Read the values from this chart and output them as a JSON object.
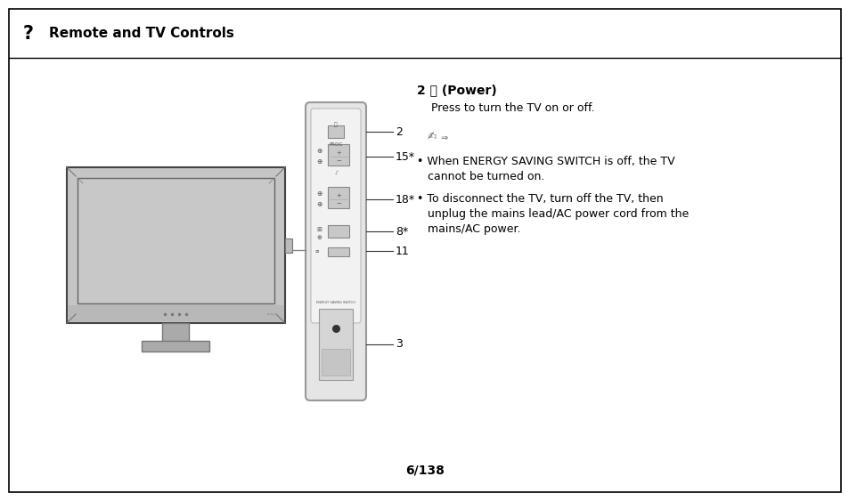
{
  "bg_color": "#ffffff",
  "border_color": "#000000",
  "header_text": "Remote and TV Controls",
  "header_question_mark": "?",
  "page_number": "6/138",
  "power_heading_num": "2 ",
  "power_heading_rest": " (Power)",
  "power_desc": "Press to turn the TV on or off.",
  "bullet1_line1": "• When ENERGY SAVING SWITCH is off, the TV",
  "bullet1_line2": "   cannot be turned on.",
  "bullet2_line1": "• To disconnect the TV, turn off the TV, then",
  "bullet2_line2": "   unplug the mains lead/AC power cord from the",
  "bullet2_line3": "   mains/AC power.",
  "label_2": "2",
  "label_15": "15*",
  "label_18": "18*",
  "label_8": "8*",
  "label_11": "11",
  "label_3": "3",
  "tv_fill": "#d0d0d0",
  "tv_border": "#555555",
  "screen_fill": "#c8c8c8",
  "panel_fill": "#ebebeb",
  "panel_border": "#999999",
  "btn_fill": "#c8c8c8",
  "btn_border": "#888888"
}
